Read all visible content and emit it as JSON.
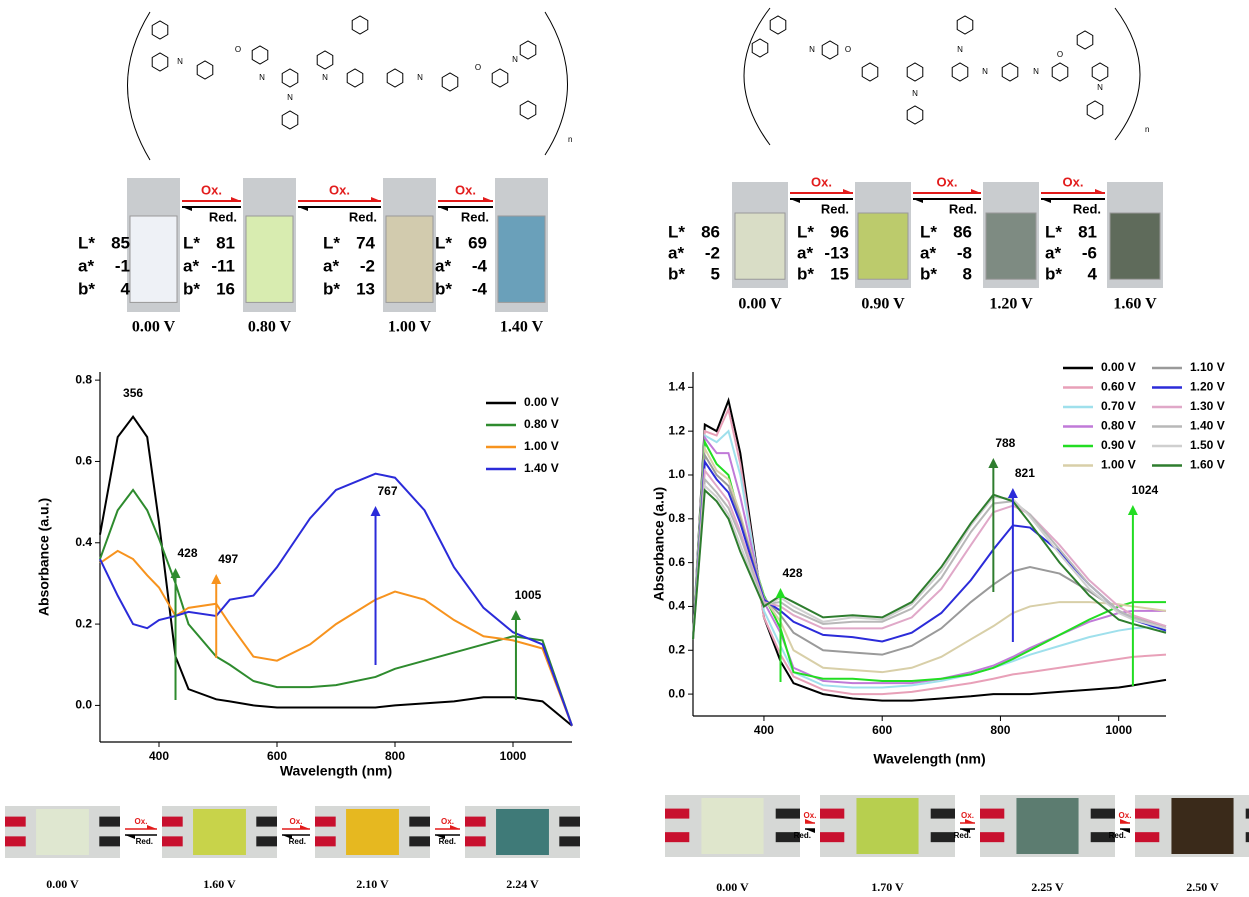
{
  "chart_data": [
    {
      "type": "line",
      "x_label": "Wavelength (nm)",
      "y_label": "Absorbance (a.u.)",
      "x": [
        300,
        330,
        356,
        380,
        400,
        428,
        450,
        497,
        520,
        560,
        600,
        656,
        700,
        767,
        800,
        850,
        900,
        950,
        1000,
        1050,
        1100
      ],
      "xlim": [
        300,
        1100
      ],
      "xticks": [
        400,
        600,
        800,
        1000
      ],
      "ylim": [
        -0.09,
        0.82
      ],
      "yticks": [
        {
          "value": 0,
          "label": "0.0"
        },
        0.2,
        0.4,
        0.6,
        0.8
      ],
      "annotations": [
        356,
        428,
        497,
        767,
        1005
      ],
      "series": [
        {
          "name": "0.00 V",
          "color": "#000000",
          "values": [
            0.42,
            0.66,
            0.71,
            0.66,
            0.45,
            0.12,
            0.04,
            0.015,
            0.01,
            0.0,
            -0.005,
            -0.005,
            -0.005,
            -0.005,
            0.0,
            0.005,
            0.01,
            0.02,
            0.02,
            0.01,
            -0.05
          ]
        },
        {
          "name": "0.80 V",
          "color": "#2e8b2e",
          "values": [
            0.36,
            0.48,
            0.53,
            0.48,
            0.41,
            0.3,
            0.2,
            0.12,
            0.1,
            0.06,
            0.045,
            0.045,
            0.05,
            0.07,
            0.09,
            0.11,
            0.13,
            0.15,
            0.17,
            0.16,
            -0.05
          ]
        },
        {
          "name": "1.00 V",
          "color": "#f7931e",
          "values": [
            0.35,
            0.38,
            0.36,
            0.32,
            0.29,
            0.22,
            0.24,
            0.25,
            0.2,
            0.12,
            0.11,
            0.15,
            0.2,
            0.26,
            0.28,
            0.26,
            0.21,
            0.17,
            0.16,
            0.14,
            -0.05
          ]
        },
        {
          "name": "1.40 V",
          "color": "#2b2bd9",
          "values": [
            0.36,
            0.27,
            0.2,
            0.19,
            0.21,
            0.22,
            0.23,
            0.22,
            0.26,
            0.27,
            0.34,
            0.46,
            0.53,
            0.57,
            0.56,
            0.48,
            0.34,
            0.24,
            0.18,
            0.15,
            -0.05
          ]
        }
      ]
    },
    {
      "type": "line",
      "x_label": "Wavelength (nm)",
      "y_label": "Absorbance (a.u)",
      "x": [
        280,
        300,
        320,
        340,
        360,
        400,
        428,
        450,
        500,
        550,
        600,
        650,
        700,
        750,
        788,
        821,
        850,
        900,
        950,
        1000,
        1024,
        1080
      ],
      "xlim": [
        280,
        1080
      ],
      "xticks": [
        400,
        600,
        800,
        1000
      ],
      "ylim": [
        -0.1,
        1.47
      ],
      "yticks": [
        {
          "value": 0,
          "label": "0.0"
        },
        0.2,
        0.4,
        0.6,
        0.8,
        {
          "value": 1,
          "label": "1.0"
        },
        1.2,
        1.4
      ],
      "annotations": [
        428,
        788,
        821,
        1024
      ],
      "series": [
        {
          "name": "0.00 V",
          "color": "#000000",
          "values": [
            0.25,
            1.23,
            1.2,
            1.34,
            1.1,
            0.35,
            0.15,
            0.05,
            0.0,
            -0.02,
            -0.03,
            -0.03,
            -0.02,
            -0.01,
            0.0,
            0.0,
            0.0,
            0.01,
            0.02,
            0.03,
            0.04,
            0.065
          ]
        },
        {
          "name": "0.60 V",
          "color": "#e8a0b8",
          "values": [
            0.25,
            1.2,
            1.18,
            1.3,
            1.05,
            0.35,
            0.18,
            0.08,
            0.02,
            0.0,
            0.0,
            0.01,
            0.03,
            0.05,
            0.07,
            0.09,
            0.1,
            0.12,
            0.14,
            0.16,
            0.17,
            0.18
          ]
        },
        {
          "name": "0.70 V",
          "color": "#9fe0ec",
          "values": [
            0.25,
            1.18,
            1.15,
            1.2,
            1.0,
            0.38,
            0.22,
            0.1,
            0.04,
            0.03,
            0.03,
            0.04,
            0.06,
            0.09,
            0.12,
            0.15,
            0.18,
            0.22,
            0.26,
            0.29,
            0.3,
            0.31
          ]
        },
        {
          "name": "0.80 V",
          "color": "#c07ad8",
          "values": [
            0.25,
            1.17,
            1.1,
            1.1,
            0.9,
            0.42,
            0.28,
            0.12,
            0.06,
            0.05,
            0.05,
            0.05,
            0.07,
            0.1,
            0.13,
            0.17,
            0.21,
            0.27,
            0.33,
            0.37,
            0.38,
            0.38
          ]
        },
        {
          "name": "0.90 V",
          "color": "#22dd22",
          "values": [
            0.25,
            1.15,
            1.05,
            1.0,
            0.8,
            0.45,
            0.3,
            0.1,
            0.07,
            0.07,
            0.06,
            0.06,
            0.07,
            0.09,
            0.12,
            0.16,
            0.2,
            0.27,
            0.34,
            0.4,
            0.42,
            0.42
          ]
        },
        {
          "name": "1.00 V",
          "color": "#d8cfa8",
          "values": [
            0.25,
            1.12,
            1.02,
            0.98,
            0.82,
            0.44,
            0.33,
            0.2,
            0.12,
            0.11,
            0.1,
            0.12,
            0.17,
            0.25,
            0.31,
            0.37,
            0.4,
            0.42,
            0.42,
            0.41,
            0.4,
            0.38
          ]
        },
        {
          "name": "1.10 V",
          "color": "#9a9a9a",
          "values": [
            0.25,
            1.09,
            1.0,
            0.95,
            0.8,
            0.44,
            0.36,
            0.28,
            0.2,
            0.19,
            0.18,
            0.22,
            0.3,
            0.42,
            0.5,
            0.56,
            0.58,
            0.55,
            0.47,
            0.38,
            0.35,
            0.31
          ]
        },
        {
          "name": "1.20 V",
          "color": "#2b2bd9",
          "values": [
            0.25,
            1.06,
            0.98,
            0.92,
            0.78,
            0.43,
            0.38,
            0.33,
            0.27,
            0.26,
            0.24,
            0.28,
            0.37,
            0.52,
            0.66,
            0.77,
            0.76,
            0.65,
            0.5,
            0.38,
            0.34,
            0.29
          ]
        },
        {
          "name": "1.30 V",
          "color": "#e0a8c8",
          "values": [
            0.25,
            1.02,
            0.95,
            0.88,
            0.74,
            0.42,
            0.4,
            0.36,
            0.3,
            0.3,
            0.3,
            0.35,
            0.48,
            0.68,
            0.83,
            0.86,
            0.82,
            0.68,
            0.52,
            0.4,
            0.36,
            0.31
          ]
        },
        {
          "name": "1.40 V",
          "color": "#b8b8b8",
          "values": [
            0.25,
            0.98,
            0.92,
            0.85,
            0.72,
            0.41,
            0.42,
            0.38,
            0.32,
            0.33,
            0.33,
            0.39,
            0.53,
            0.74,
            0.87,
            0.88,
            0.82,
            0.66,
            0.5,
            0.38,
            0.35,
            0.3
          ]
        },
        {
          "name": "1.50 V",
          "color": "#cfcfcf",
          "values": [
            0.25,
            0.95,
            0.9,
            0.82,
            0.68,
            0.4,
            0.44,
            0.4,
            0.33,
            0.35,
            0.34,
            0.41,
            0.56,
            0.77,
            0.9,
            0.89,
            0.81,
            0.64,
            0.48,
            0.37,
            0.34,
            0.3
          ]
        },
        {
          "name": "1.60 V",
          "color": "#2e7d2e",
          "values": [
            0.25,
            0.93,
            0.88,
            0.8,
            0.65,
            0.4,
            0.45,
            0.42,
            0.35,
            0.36,
            0.35,
            0.42,
            0.58,
            0.78,
            0.91,
            0.88,
            0.78,
            0.6,
            0.45,
            0.34,
            0.32,
            0.28
          ]
        }
      ]
    }
  ],
  "left_structure": {
    "atoms": [
      "N",
      "O",
      "N",
      "N",
      "N",
      "N",
      "O",
      "N"
    ],
    "n": "n"
  },
  "right_structure": {
    "atoms": [
      "N",
      "O",
      "N",
      "N",
      "N",
      "N",
      "O",
      "N"
    ],
    "n": "n"
  },
  "left_cuvettes": {
    "labels": {
      "L": "L*",
      "a": "a*",
      "b": "b*"
    },
    "ox": "Ox.",
    "red": "Red.",
    "items": [
      {
        "voltage": "0.00 V",
        "L": 85,
        "a": -1,
        "b": 4,
        "color": "#eef1f6"
      },
      {
        "voltage": "0.80 V",
        "L": 81,
        "a": -11,
        "b": 16,
        "color": "#d8ecb0"
      },
      {
        "voltage": "1.00 V",
        "L": 74,
        "a": -2,
        "b": 13,
        "color": "#d2cbae"
      },
      {
        "voltage": "1.40 V",
        "L": 69,
        "a": -4,
        "b": -4,
        "color": "#6aa0ba"
      }
    ]
  },
  "right_cuvettes": {
    "labels": {
      "L": "L*",
      "a": "a*",
      "b": "b*"
    },
    "ox": "Ox.",
    "red": "Red.",
    "items": [
      {
        "voltage": "0.00 V",
        "L": 86,
        "a": -2,
        "b": 5,
        "color": "#d9ddc6"
      },
      {
        "voltage": "0.90 V",
        "L": 96,
        "a": -13,
        "b": 15,
        "color": "#bccb6c"
      },
      {
        "voltage": "1.20 V",
        "L": 86,
        "a": -8,
        "b": 8,
        "color": "#7e8b82"
      },
      {
        "voltage": "1.60 V",
        "L": 81,
        "a": -6,
        "b": 4,
        "color": "#5f6b5b"
      }
    ]
  },
  "left_devices": {
    "ox": "Ox.",
    "red": "Red.",
    "items": [
      {
        "voltage": "0.00 V",
        "color": "#dfe7d0"
      },
      {
        "voltage": "1.60 V",
        "color": "#c8d34a"
      },
      {
        "voltage": "2.10 V",
        "color": "#e6b820"
      },
      {
        "voltage": "2.24 V",
        "color": "#3f7a78"
      }
    ]
  },
  "right_devices": {
    "ox": "Ox.",
    "red": "Red.",
    "items": [
      {
        "voltage": "0.00  V",
        "color": "#dfe6cc"
      },
      {
        "voltage": "1.70 V",
        "color": "#b7cf4f"
      },
      {
        "voltage": "2.25 V",
        "color": "#5c7c70"
      },
      {
        "voltage": "2.50 V",
        "color": "#3a2a1a"
      }
    ]
  }
}
